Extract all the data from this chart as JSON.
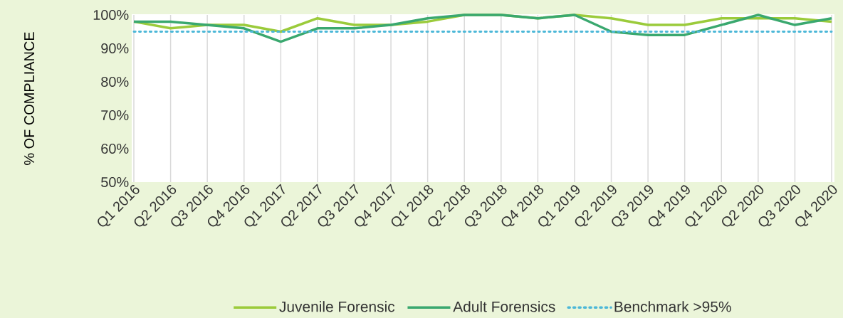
{
  "chart_data": {
    "type": "line",
    "ylabel": "% OF COMPLIANCE",
    "categories": [
      "Q1 2016",
      "Q2 2016",
      "Q3 2016",
      "Q4 2016",
      "Q1 2017",
      "Q2 2017",
      "Q3 2017",
      "Q4 2017",
      "Q1 2018",
      "Q2 2018",
      "Q3 2018",
      "Q4 2018",
      "Q1 2019",
      "Q2 2019",
      "Q3 2019",
      "Q4 2019",
      "Q1 2020",
      "Q2 2020",
      "Q3 2020",
      "Q4 2020"
    ],
    "series": [
      {
        "name": "Juvenile Forensic",
        "color": "#9bcb3b",
        "values": [
          98,
          96,
          97,
          97,
          95,
          99,
          97,
          97,
          98,
          100,
          100,
          99,
          100,
          99,
          97,
          97,
          99,
          99,
          99,
          98
        ]
      },
      {
        "name": "Adult Forensics",
        "color": "#3aa86f",
        "values": [
          98,
          98,
          97,
          96,
          92,
          96,
          96,
          97,
          99,
          100,
          100,
          99,
          100,
          95,
          94,
          94,
          97,
          100,
          97,
          99
        ]
      },
      {
        "name": "Benchmark >95%",
        "color": "#4db8d8",
        "line_style": "dotted",
        "values": [
          95,
          95,
          95,
          95,
          95,
          95,
          95,
          95,
          95,
          95,
          95,
          95,
          95,
          95,
          95,
          95,
          95,
          95,
          95,
          95
        ]
      }
    ],
    "ylim": [
      50,
      100
    ],
    "yticks": [
      {
        "value": 50,
        "label": "50%"
      },
      {
        "value": 60,
        "label": "60%"
      },
      {
        "value": 70,
        "label": "70%"
      },
      {
        "value": 80,
        "label": "80%"
      },
      {
        "value": 90,
        "label": "90%"
      },
      {
        "value": 100,
        "label": "100%"
      }
    ],
    "grid": "x",
    "legend": "bottom",
    "marker": "none",
    "line_style": "solid"
  }
}
